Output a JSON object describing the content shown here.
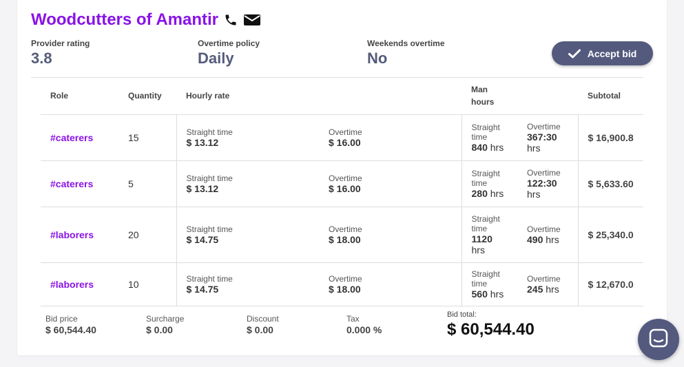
{
  "provider": {
    "name": "Woodcutters of Amantir",
    "icons": [
      "phone-icon",
      "envelope-icon"
    ]
  },
  "stats": {
    "rating_label": "Provider rating",
    "rating_value": "3.8",
    "overtime_label": "Overtime policy",
    "overtime_value": "Daily",
    "weekends_label": "Weekends overtime",
    "weekends_value": "No"
  },
  "accept_button": {
    "label": "Accept bid",
    "icon": "check-icon"
  },
  "table": {
    "headers": {
      "role": "Role",
      "quantity": "Quantity",
      "hourly_rate": "Hourly rate",
      "man_hours_1": "Man",
      "man_hours_2": "hours",
      "subtotal": "Subtotal"
    },
    "rows": [
      {
        "role": "#caterers",
        "quantity": "15",
        "st_label": "Straight time",
        "st_rate": "$ 13.12",
        "ot_label": "Overtime",
        "ot_rate": "$ 16.00",
        "mh_st_label_1": "Straight",
        "mh_st_label_2": "time",
        "mh_st_value": "840",
        "mh_st_unit": "hrs",
        "mh_ot_label": "Overtime",
        "mh_ot_value": "367:30",
        "mh_ot_unit": "hrs",
        "subtotal": "$ 16,900.8"
      },
      {
        "role": "#caterers",
        "quantity": "5",
        "st_label": "Straight time",
        "st_rate": "$ 13.12",
        "ot_label": "Overtime",
        "ot_rate": "$ 16.00",
        "mh_st_label_1": "Straight",
        "mh_st_label_2": "time",
        "mh_st_value": "280",
        "mh_st_unit": "hrs",
        "mh_ot_label": "Overtime",
        "mh_ot_value": "122:30",
        "mh_ot_unit": "hrs",
        "subtotal": "$ 5,633.60"
      },
      {
        "role": "#laborers",
        "quantity": "20",
        "st_label": "Straight time",
        "st_rate": "$ 14.75",
        "ot_label": "Overtime",
        "ot_rate": "$ 18.00",
        "mh_st_label_1": "Straight",
        "mh_st_label_2": "time",
        "mh_st_value": "1120",
        "mh_st_unit": "hrs",
        "mh_ot_label": "Overtime",
        "mh_ot_value": "490",
        "mh_ot_unit": "hrs",
        "subtotal": "$ 25,340.0"
      },
      {
        "role": "#laborers",
        "quantity": "10",
        "st_label": "Straight time",
        "st_rate": "$ 14.75",
        "ot_label": "Overtime",
        "ot_rate": "$ 18.00",
        "mh_st_label_1": "Straight",
        "mh_st_label_2": "time",
        "mh_st_value": "560",
        "mh_st_unit": "hrs",
        "mh_ot_label": "Overtime",
        "mh_ot_value": "245",
        "mh_ot_unit": "hrs",
        "subtotal": "$ 12,670.0"
      }
    ]
  },
  "footer": {
    "bid_price_label": "Bid price",
    "bid_price_value": "$ 60,544.40",
    "surcharge_label": "Surcharge",
    "surcharge_value": "$ 0.00",
    "discount_label": "Discount",
    "discount_value": "$ 0.00",
    "tax_label": "Tax",
    "tax_value": "0.000 %",
    "bid_total_label": "Bid total:",
    "bid_total_value": "$ 60,544.40"
  },
  "chat_button": {
    "icon": "chat-icon"
  },
  "colors": {
    "accent": "#8a12e6",
    "button": "#545a7e"
  }
}
